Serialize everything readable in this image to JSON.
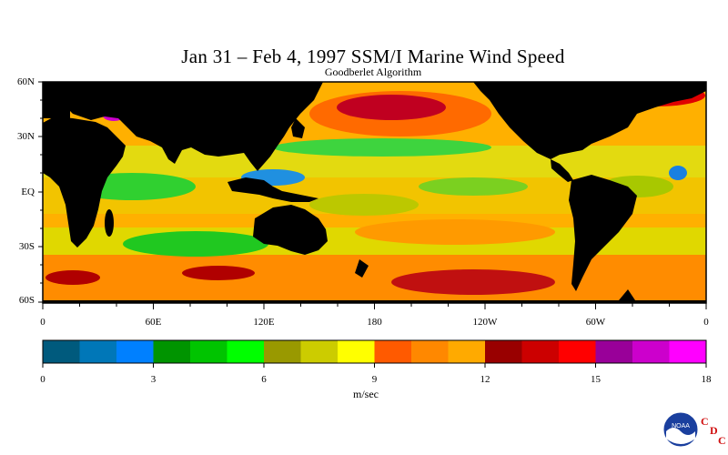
{
  "title": "Jan 31 – Feb 4, 1997 SSM/I Marine Wind Speed",
  "subtitle": "Goodberlet Algorithm",
  "lat_labels": [
    "60N",
    "30N",
    "EQ",
    "30S",
    "60S"
  ],
  "lon_labels": [
    "0",
    "60E",
    "120E",
    "180",
    "120W",
    "60W",
    "0"
  ],
  "colorbar": {
    "ticks": [
      "0",
      "3",
      "6",
      "9",
      "12",
      "15",
      "18"
    ],
    "unit": "m/sec",
    "colors": [
      "#005a7d",
      "#0077b8",
      "#0080ff",
      "#009400",
      "#00c400",
      "#00ff00",
      "#999900",
      "#cccc00",
      "#ffff00",
      "#ff5a00",
      "#ff8800",
      "#ffaa00",
      "#990000",
      "#cc0000",
      "#ff0000",
      "#990099",
      "#cc00cc",
      "#ff00ff"
    ]
  },
  "logo": {
    "noaa_text": "NOAA",
    "cdc_letters": [
      "C",
      "D",
      "C"
    ]
  },
  "chart_data": {
    "type": "heatmap",
    "title": "Jan 31 – Feb 4, 1997 SSM/I Marine Wind Speed",
    "subtitle": "Goodberlet Algorithm",
    "xlabel": "",
    "ylabel": "",
    "x_range": [
      0,
      360
    ],
    "y_range": [
      -60,
      60
    ],
    "value_range": [
      0,
      18
    ],
    "colorbar_label": "m/sec",
    "land_color": "#000000"
  }
}
